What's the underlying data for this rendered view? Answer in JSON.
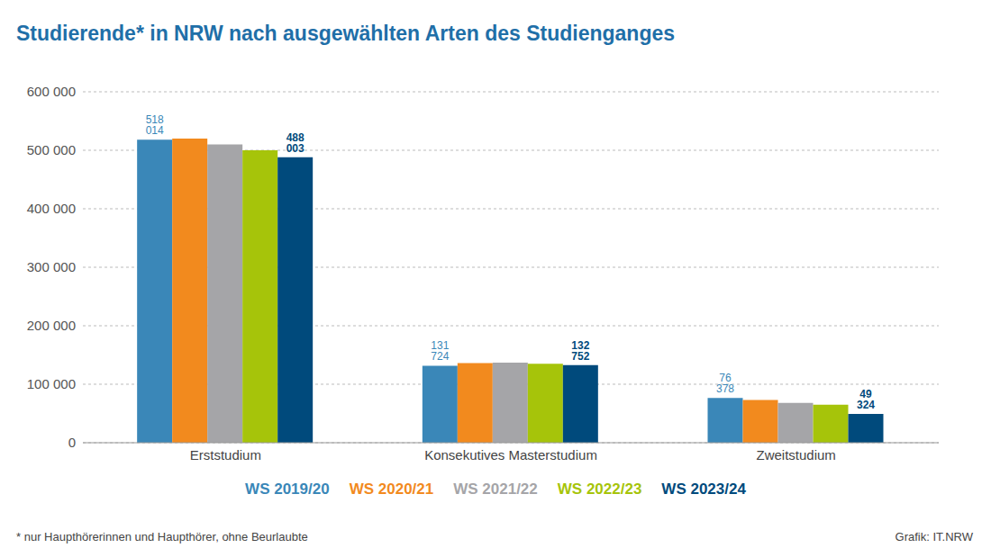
{
  "chart_data": {
    "type": "bar",
    "title": "Studierende* in NRW nach ausgewählten Arten des Studienganges",
    "categories": [
      "Erststudium",
      "Konsekutives Masterstudium",
      "Zweitstudium"
    ],
    "series": [
      {
        "name": "WS 2019/20",
        "color": "#3a87b8",
        "values": [
          518014,
          131724,
          76378
        ],
        "data_labels": true,
        "value_labels": [
          "518 014",
          "131 724",
          "76 378"
        ]
      },
      {
        "name": "WS 2020/21",
        "color": "#f28a1e",
        "values": [
          520000,
          136000,
          73000
        ]
      },
      {
        "name": "WS 2021/22",
        "color": "#a5a5a8",
        "values": [
          510000,
          137000,
          68000
        ]
      },
      {
        "name": "WS 2022/23",
        "color": "#a6c40a",
        "values": [
          500000,
          135000,
          65000
        ]
      },
      {
        "name": "WS 2023/24",
        "color": "#004a7c",
        "values": [
          488003,
          132752,
          49324
        ],
        "data_labels": true,
        "value_labels": [
          "488 003",
          "132 752",
          "49 324"
        ]
      }
    ],
    "ylim": [
      0,
      600000
    ],
    "yticks": [
      0,
      {
        "value": 100000,
        "label": "100 000"
      },
      {
        "value": 200000,
        "label": "200 000"
      },
      {
        "value": 300000,
        "label": "300 000"
      },
      {
        "value": 400000,
        "label": "400 000"
      },
      {
        "value": 500000,
        "label": "500 000"
      },
      {
        "value": 600000,
        "label": "600 000"
      }
    ],
    "grid": true,
    "legend": "bottom",
    "footnote": "* nur Haupthörerinnen und Haupthörer, ohne Beurlaubte",
    "source": "Grafik: IT.NRW"
  }
}
